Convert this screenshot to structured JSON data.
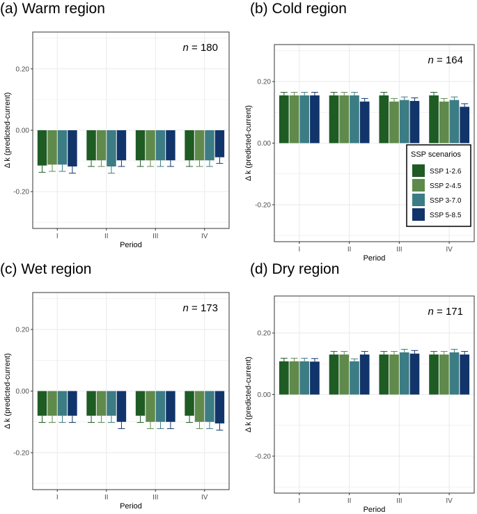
{
  "chart_data": [
    {
      "type": "bar",
      "panel": "a",
      "title": "(a) Warm region",
      "n_label": "n",
      "n_value": "= 180",
      "xlabel": "Period",
      "ylabel": "Δ k (predicted-current)",
      "categories": [
        "I",
        "II",
        "III",
        "IV"
      ],
      "ylim": [
        -0.32,
        0.32
      ],
      "yticks": [
        -0.2,
        0.0,
        0.2
      ],
      "ytick_labels": [
        "-0.20",
        "0.00",
        "0.20"
      ],
      "series": [
        {
          "name": "SSP 1-2.6",
          "values": [
            -0.115,
            -0.098,
            -0.098,
            -0.098
          ],
          "errors": [
            0.022,
            0.02,
            0.02,
            0.02
          ]
        },
        {
          "name": "SSP 2-4.5",
          "values": [
            -0.112,
            -0.098,
            -0.098,
            -0.098
          ],
          "errors": [
            0.022,
            0.02,
            0.02,
            0.02
          ]
        },
        {
          "name": "SSP 3-7.0",
          "values": [
            -0.112,
            -0.118,
            -0.098,
            -0.098
          ],
          "errors": [
            0.022,
            0.022,
            0.02,
            0.02
          ]
        },
        {
          "name": "SSP 5-8.5",
          "values": [
            -0.118,
            -0.098,
            -0.098,
            -0.088
          ],
          "errors": [
            0.022,
            0.02,
            0.02,
            0.02
          ]
        }
      ]
    },
    {
      "type": "bar",
      "panel": "b",
      "title": "(b) Cold region",
      "n_label": "n",
      "n_value": "= 164",
      "xlabel": "Period",
      "ylabel": "Δ k (predicted-current)",
      "categories": [
        "I",
        "II",
        "III",
        "IV"
      ],
      "ylim": [
        -0.32,
        0.32
      ],
      "yticks": [
        -0.2,
        0.0,
        0.2
      ],
      "ytick_labels": [
        "-0.20",
        "0.00",
        "0.20"
      ],
      "series": [
        {
          "name": "SSP 1-2.6",
          "values": [
            0.155,
            0.155,
            0.155,
            0.155
          ],
          "errors": [
            0.01,
            0.01,
            0.01,
            0.01
          ]
        },
        {
          "name": "SSP 2-4.5",
          "values": [
            0.155,
            0.155,
            0.135,
            0.135
          ],
          "errors": [
            0.01,
            0.01,
            0.01,
            0.01
          ]
        },
        {
          "name": "SSP 3-7.0",
          "values": [
            0.155,
            0.155,
            0.14,
            0.14
          ],
          "errors": [
            0.01,
            0.01,
            0.01,
            0.01
          ]
        },
        {
          "name": "SSP 5-8.5",
          "values": [
            0.155,
            0.135,
            0.137,
            0.118
          ],
          "errors": [
            0.01,
            0.01,
            0.01,
            0.01
          ]
        }
      ]
    },
    {
      "type": "bar",
      "panel": "c",
      "title": "(c) Wet region",
      "n_label": "n",
      "n_value": "= 173",
      "xlabel": "Period",
      "ylabel": "Δ k (predicted-current)",
      "categories": [
        "I",
        "II",
        "III",
        "IV"
      ],
      "ylim": [
        -0.32,
        0.32
      ],
      "yticks": [
        -0.2,
        0.0,
        0.2
      ],
      "ytick_labels": [
        "-0.20",
        "0.00",
        "0.20"
      ],
      "series": [
        {
          "name": "SSP 1-2.6",
          "values": [
            -0.08,
            -0.08,
            -0.08,
            -0.08
          ],
          "errors": [
            0.022,
            0.022,
            0.022,
            0.022
          ]
        },
        {
          "name": "SSP 2-4.5",
          "values": [
            -0.08,
            -0.08,
            -0.1,
            -0.1
          ],
          "errors": [
            0.022,
            0.022,
            0.022,
            0.022
          ]
        },
        {
          "name": "SSP 3-7.0",
          "values": [
            -0.08,
            -0.08,
            -0.1,
            -0.1
          ],
          "errors": [
            0.022,
            0.022,
            0.022,
            0.022
          ]
        },
        {
          "name": "SSP 5-8.5",
          "values": [
            -0.08,
            -0.1,
            -0.1,
            -0.105
          ],
          "errors": [
            0.022,
            0.022,
            0.022,
            0.022
          ]
        }
      ]
    },
    {
      "type": "bar",
      "panel": "d",
      "title": "(d) Dry region",
      "n_label": "n",
      "n_value": "= 171",
      "xlabel": "Period",
      "ylabel": "Δ k (predicted-current)",
      "categories": [
        "I",
        "II",
        "III",
        "IV"
      ],
      "ylim": [
        -0.32,
        0.32
      ],
      "yticks": [
        -0.2,
        0.0,
        0.2
      ],
      "ytick_labels": [
        "-0.20",
        "0.00",
        "0.20"
      ],
      "series": [
        {
          "name": "SSP 1-2.6",
          "values": [
            0.108,
            0.13,
            0.13,
            0.13
          ],
          "errors": [
            0.01,
            0.01,
            0.01,
            0.01
          ]
        },
        {
          "name": "SSP 2-4.5",
          "values": [
            0.108,
            0.13,
            0.13,
            0.13
          ],
          "errors": [
            0.01,
            0.01,
            0.01,
            0.01
          ]
        },
        {
          "name": "SSP 3-7.0",
          "values": [
            0.108,
            0.108,
            0.137,
            0.137
          ],
          "errors": [
            0.01,
            0.008,
            0.01,
            0.01
          ]
        },
        {
          "name": "SSP 5-8.5",
          "values": [
            0.107,
            0.13,
            0.133,
            0.13
          ],
          "errors": [
            0.01,
            0.01,
            0.01,
            0.01
          ]
        }
      ]
    }
  ],
  "legend": {
    "title": "SSP scenarios",
    "entries": [
      "SSP 1-2.6",
      "SSP 2-4.5",
      "SSP 3-7.0",
      "SSP 5-8.5"
    ],
    "panel": "b",
    "position": "bottom-right"
  },
  "series_colors": [
    "#1e5c24",
    "#5f8a4b",
    "#3c7c84",
    "#11356b"
  ],
  "error_bar_colors": [
    "#1e5c24",
    "#5f8a4b",
    "#3c7c84",
    "#11356b"
  ],
  "panel_background": "#ffffff",
  "grid_color": "#ebebeb",
  "border_color": "#333333"
}
